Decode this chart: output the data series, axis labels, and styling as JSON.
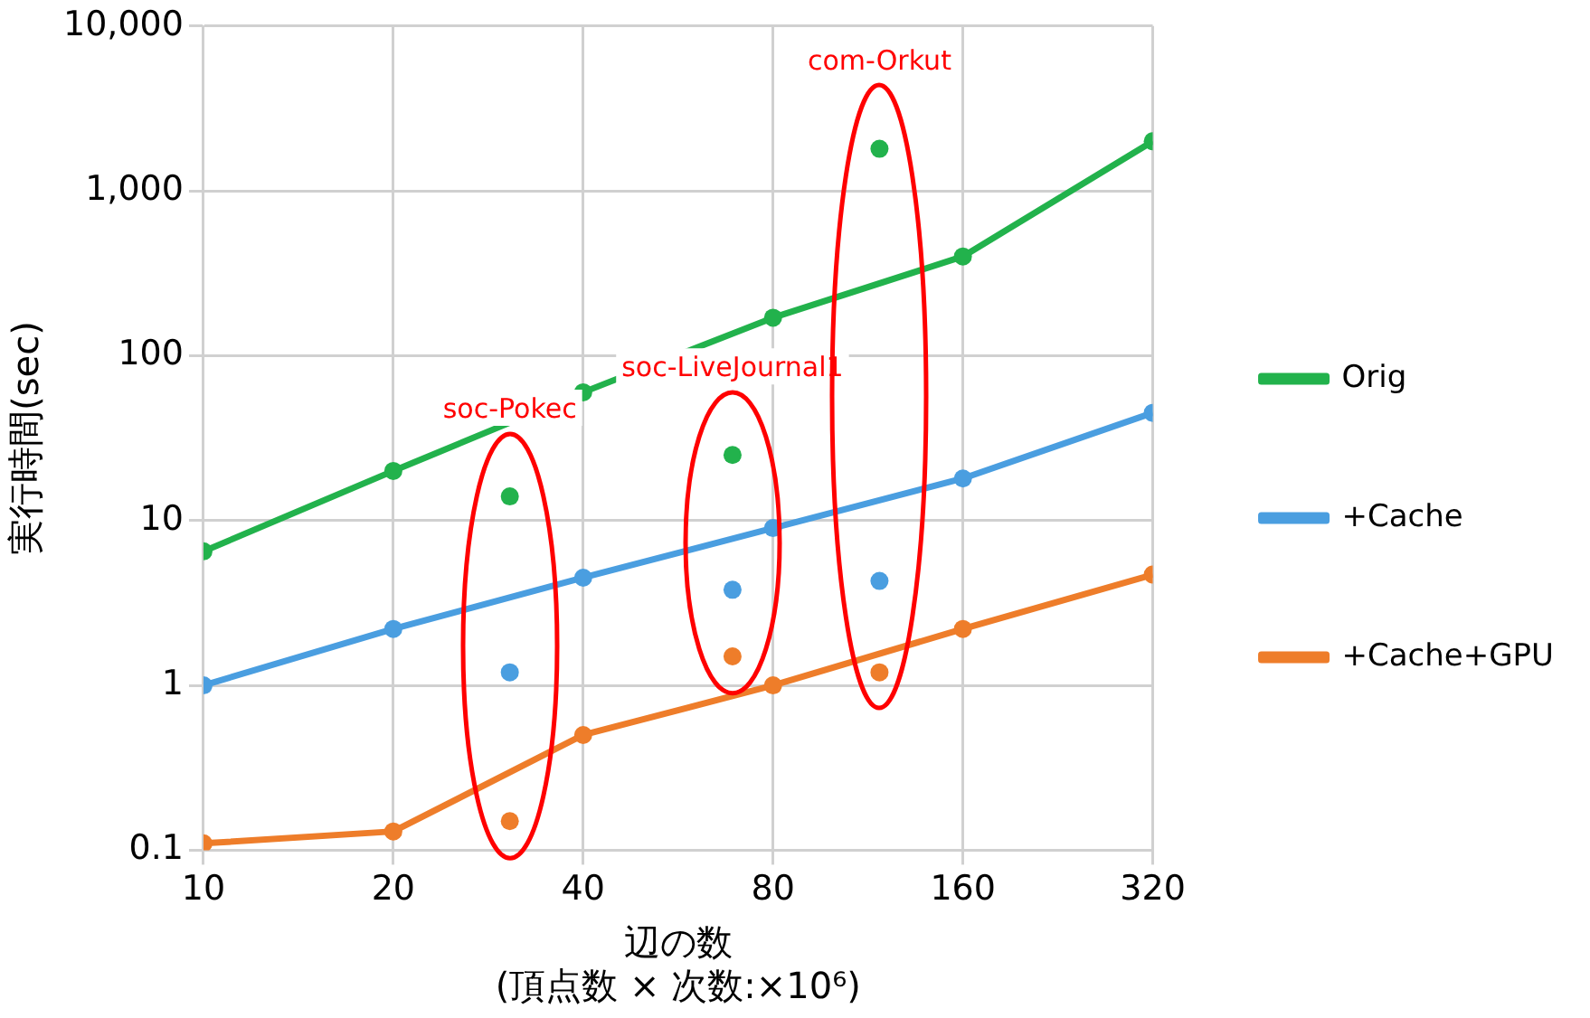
{
  "chart_data": {
    "type": "line",
    "xlabel": "辺の数\n(頂点数 × 次数:×10⁶)",
    "ylabel": "実行時間(sec)",
    "x": [
      10,
      20,
      40,
      80,
      160,
      320
    ],
    "series": [
      {
        "name": "Orig",
        "color": "#22b24c",
        "values": [
          6.5,
          20,
          60,
          170,
          400,
          2000
        ]
      },
      {
        "name": "+Cache",
        "color": "#4a9ee0",
        "values": [
          1,
          2.2,
          4.5,
          9,
          18,
          45
        ]
      },
      {
        "name": "+Cache+GPU",
        "color": "#ee7d2a",
        "values": [
          0.11,
          0.13,
          0.5,
          1,
          2.2,
          4.7
        ]
      },
      {
        "type": "scatter",
        "color": "#22b24c",
        "x": [
          30.6,
          69,
          118
        ],
        "values": [
          14,
          25,
          1800
        ]
      },
      {
        "type": "scatter",
        "color": "#4a9ee0",
        "x": [
          30.6,
          69,
          118
        ],
        "values": [
          1.2,
          3.8,
          4.3
        ]
      },
      {
        "type": "scatter",
        "color": "#ee7d2a",
        "x": [
          30.6,
          69,
          118
        ],
        "values": [
          0.15,
          1.5,
          1.2
        ]
      }
    ],
    "annotations": [
      "soc-Pokec",
      "soc-LiveJournal1",
      "com-Orkut"
    ],
    "log": "xy",
    "xlim": [
      10,
      320
    ],
    "xticks": [
      10,
      20,
      40,
      80,
      160,
      320
    ],
    "ylim": [
      0.1,
      10000
    ],
    "yticks": [
      0.1,
      1,
      10,
      100,
      {
        "value": 1000,
        "label": "1,000"
      },
      {
        "value": 10000,
        "label": "10,000"
      }
    ],
    "grid": true,
    "legend": "right",
    "marker": "circle",
    "line_style": "solid"
  }
}
